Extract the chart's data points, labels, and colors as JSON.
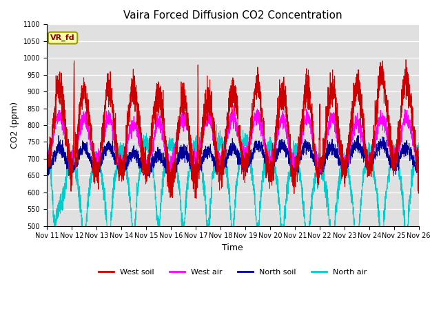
{
  "title": "Vaira Forced Diffusion CO2 Concentration",
  "xlabel": "Time",
  "ylabel": "CO2 (ppm)",
  "ylim": [
    500,
    1100
  ],
  "yticks": [
    500,
    550,
    600,
    650,
    700,
    750,
    800,
    850,
    900,
    950,
    1000,
    1050,
    1100
  ],
  "xtick_labels": [
    "Nov 11",
    "Nov 12",
    "Nov 13",
    "Nov 14",
    "Nov 15",
    "Nov 16",
    "Nov 17",
    "Nov 18",
    "Nov 19",
    "Nov 20",
    "Nov 21",
    "Nov 22",
    "Nov 23",
    "Nov 24",
    "Nov 25",
    "Nov 26"
  ],
  "colors": {
    "west_soil": "#cc0000",
    "west_air": "#ff00ff",
    "north_soil": "#000099",
    "north_air": "#00cccc"
  },
  "legend_labels": [
    "West soil",
    "West air",
    "North soil",
    "North air"
  ],
  "vr_fd_box_color": "#ffffaa",
  "vr_fd_border_color": "#999900",
  "vr_fd_text_color": "#880000",
  "background_color": "#e0e0e0",
  "seed": 12345,
  "n_points": 3600
}
